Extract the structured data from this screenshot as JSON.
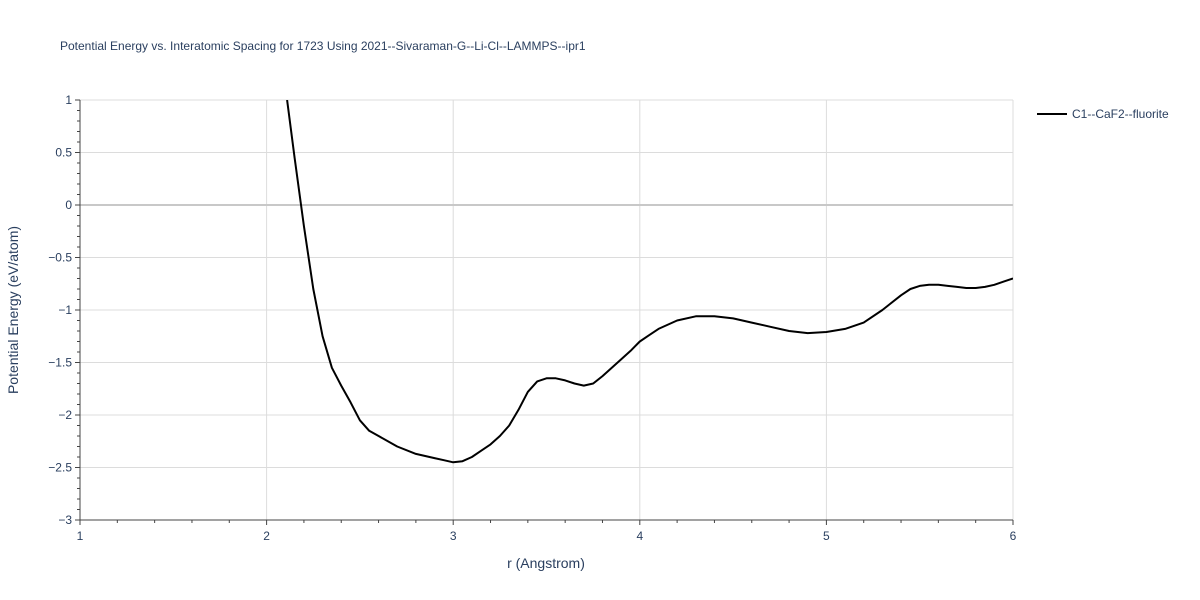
{
  "chart_data": {
    "type": "line",
    "title": "Potential Energy vs. Interatomic Spacing for 1723 Using 2021--Sivaraman-G--Li-Cl--LAMMPS--ipr1",
    "xlabel": "r (Angstrom)",
    "ylabel": "Potential Energy (eV/atom)",
    "xlim": [
      1,
      6
    ],
    "ylim": [
      -3,
      1
    ],
    "x_ticks": [
      1,
      2,
      3,
      4,
      5,
      6
    ],
    "x_tick_labels": [
      "1",
      "2",
      "3",
      "4",
      "5",
      "6"
    ],
    "y_ticks": [
      1,
      0.5,
      0,
      -0.5,
      -1,
      -1.5,
      -2,
      -2.5,
      -3
    ],
    "y_tick_labels": [
      "1",
      "0.5",
      "0",
      "−0.5",
      "−1",
      "−1.5",
      "−2",
      "−2.5",
      "−3"
    ],
    "grid": true,
    "legend_position": "top-right",
    "colors": {
      "line": "#000000",
      "grid": "#dcdcdc",
      "zeroline": "#c8c8c8",
      "axis": "#444444",
      "text": "#2a3f5f"
    },
    "series": [
      {
        "name": "C1--CaF2--fluorite",
        "x": [
          2.11,
          2.15,
          2.2,
          2.25,
          2.3,
          2.35,
          2.4,
          2.45,
          2.5,
          2.55,
          2.6,
          2.7,
          2.8,
          2.9,
          2.95,
          3.0,
          3.05,
          3.1,
          3.15,
          3.2,
          3.25,
          3.3,
          3.35,
          3.4,
          3.45,
          3.5,
          3.55,
          3.6,
          3.65,
          3.7,
          3.75,
          3.8,
          3.85,
          3.9,
          3.95,
          4.0,
          4.05,
          4.1,
          4.2,
          4.3,
          4.4,
          4.5,
          4.6,
          4.7,
          4.8,
          4.9,
          5.0,
          5.1,
          5.2,
          5.3,
          5.4,
          5.45,
          5.5,
          5.55,
          5.6,
          5.65,
          5.7,
          5.75,
          5.8,
          5.85,
          5.9,
          5.95,
          6.0
        ],
        "y": [
          1.0,
          0.45,
          -0.2,
          -0.8,
          -1.25,
          -1.55,
          -1.72,
          -1.88,
          -2.05,
          -2.15,
          -2.2,
          -2.3,
          -2.37,
          -2.41,
          -2.43,
          -2.45,
          -2.44,
          -2.4,
          -2.34,
          -2.28,
          -2.2,
          -2.1,
          -1.95,
          -1.78,
          -1.68,
          -1.65,
          -1.65,
          -1.67,
          -1.7,
          -1.72,
          -1.7,
          -1.63,
          -1.55,
          -1.47,
          -1.39,
          -1.3,
          -1.24,
          -1.18,
          -1.1,
          -1.06,
          -1.06,
          -1.08,
          -1.12,
          -1.16,
          -1.2,
          -1.22,
          -1.21,
          -1.18,
          -1.12,
          -1.0,
          -0.86,
          -0.8,
          -0.77,
          -0.76,
          -0.76,
          -0.77,
          -0.78,
          -0.79,
          -0.79,
          -0.78,
          -0.76,
          -0.73,
          -0.7
        ]
      }
    ]
  }
}
